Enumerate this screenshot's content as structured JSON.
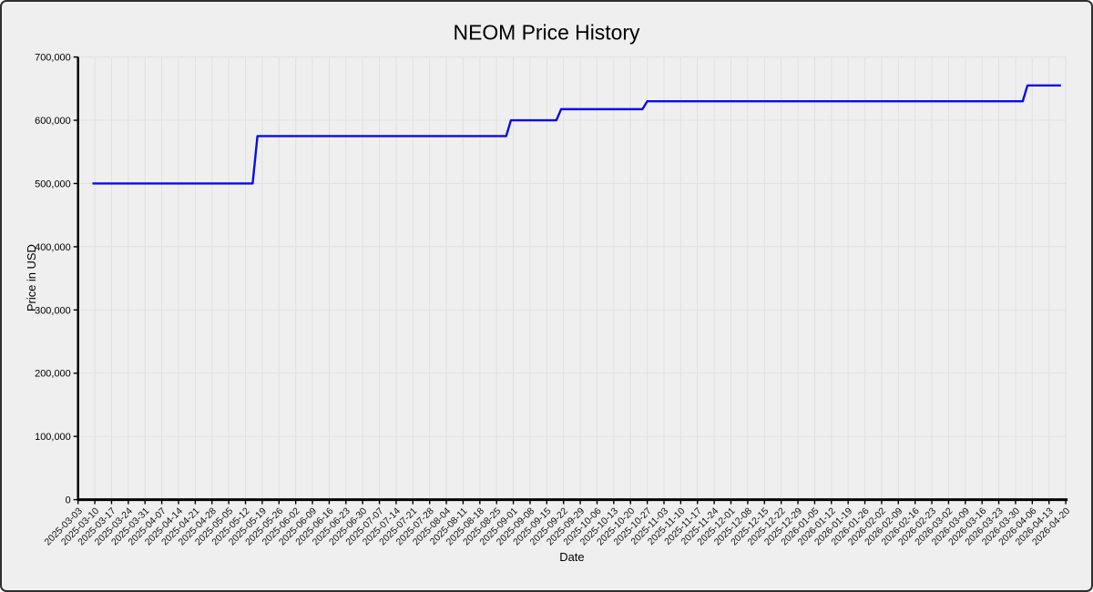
{
  "chart_data": {
    "type": "line",
    "title": "NEOM Price History",
    "xlabel": "Date",
    "ylabel": "Price in USD",
    "grid": true,
    "legend_position": "none",
    "background_color": "#efefef",
    "grid_color": "#e1e1e1",
    "axis_color": "#000000",
    "line_color": "#0b0be8",
    "ylim": [
      0,
      700000
    ],
    "yticks": [
      0,
      100000,
      200000,
      300000,
      400000,
      500000,
      600000,
      700000
    ],
    "ytick_labels": [
      "0",
      "100,000",
      "200,000",
      "300,000",
      "400,000",
      "500,000",
      "600,000",
      "700,000"
    ],
    "x_axis": {
      "start": "2025-03-03",
      "end": "2026-04-20",
      "tick_interval": "weekly"
    },
    "xticks": [
      "2025-03-03",
      "2025-03-10",
      "2025-03-17",
      "2025-03-24",
      "2025-03-31",
      "2025-04-07",
      "2025-04-14",
      "2025-04-21",
      "2025-04-28",
      "2025-05-05",
      "2025-05-12",
      "2025-05-19",
      "2025-05-26",
      "2025-06-02",
      "2025-06-09",
      "2025-06-16",
      "2025-06-23",
      "2025-06-30",
      "2025-07-07",
      "2025-07-14",
      "2025-07-21",
      "2025-07-28",
      "2025-08-04",
      "2025-08-11",
      "2025-08-18",
      "2025-08-25",
      "2025-09-01",
      "2025-09-08",
      "2025-09-15",
      "2025-09-22",
      "2025-09-29",
      "2025-10-06",
      "2025-10-13",
      "2025-10-20",
      "2025-10-27",
      "2025-11-03",
      "2025-11-10",
      "2025-11-17",
      "2025-11-24",
      "2025-12-01",
      "2025-12-08",
      "2025-12-15",
      "2025-12-22",
      "2025-12-29",
      "2026-01-05",
      "2026-01-12",
      "2026-01-19",
      "2026-01-26",
      "2026-02-02",
      "2026-02-09",
      "2026-02-16",
      "2026-02-23",
      "2026-03-02",
      "2026-03-09",
      "2026-03-16",
      "2026-03-23",
      "2026-03-30",
      "2026-04-06",
      "2026-04-13",
      "2026-04-20"
    ],
    "series": [
      {
        "name": "NEOM price",
        "points": [
          {
            "date": "2025-03-09",
            "price": 500000
          },
          {
            "date": "2025-05-15",
            "price": 500000
          },
          {
            "date": "2025-05-17",
            "price": 575000
          },
          {
            "date": "2025-08-29",
            "price": 575000
          },
          {
            "date": "2025-08-31",
            "price": 600000
          },
          {
            "date": "2025-09-19",
            "price": 600000
          },
          {
            "date": "2025-09-21",
            "price": 617500
          },
          {
            "date": "2025-10-25",
            "price": 617500
          },
          {
            "date": "2025-10-27",
            "price": 630000
          },
          {
            "date": "2026-04-02",
            "price": 630000
          },
          {
            "date": "2026-04-04",
            "price": 655000
          },
          {
            "date": "2026-04-18",
            "price": 655000
          }
        ]
      }
    ]
  }
}
